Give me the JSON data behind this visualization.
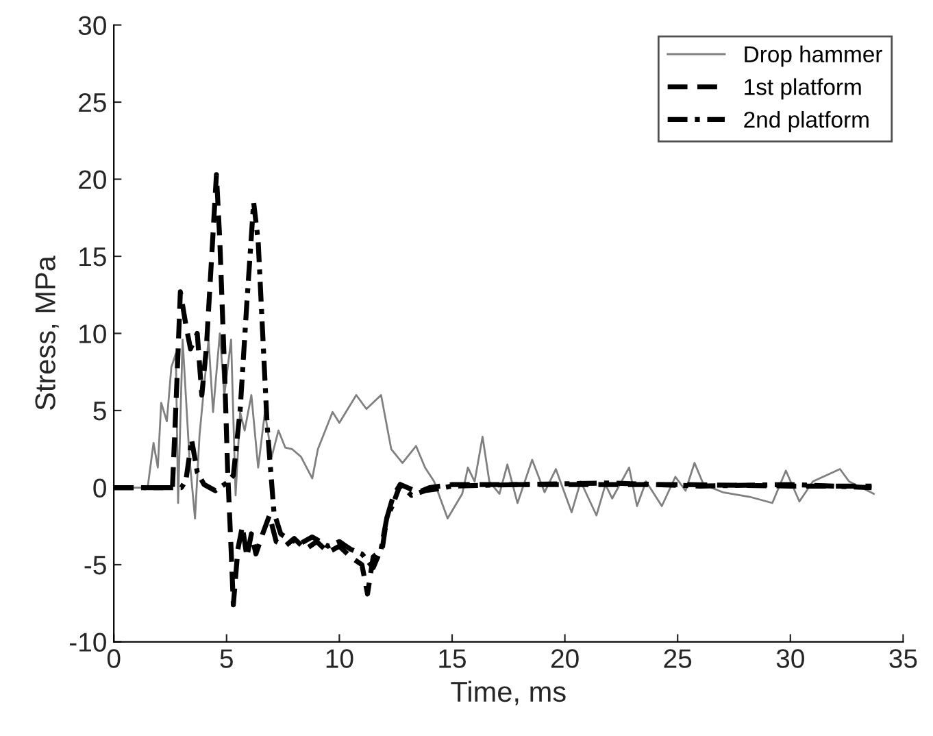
{
  "chart_data": {
    "type": "line",
    "xlabel": "Time, ms",
    "ylabel": "Stress, MPa",
    "xlim": [
      0,
      35
    ],
    "ylim": [
      -10,
      30
    ],
    "xticks": [
      0,
      5,
      10,
      15,
      20,
      25,
      30,
      35
    ],
    "yticks": [
      -10,
      -5,
      0,
      5,
      10,
      15,
      20,
      25,
      30
    ],
    "grid": false,
    "legend": "top right",
    "marker": "none",
    "series": [
      {
        "name": "Drop hammer",
        "color": "#808080",
        "line_style": "solid",
        "x": [
          0,
          1.5,
          1.76,
          1.95,
          2.1,
          2.35,
          2.55,
          2.75,
          2.85,
          3.05,
          3.35,
          3.6,
          3.8,
          4.2,
          4.4,
          4.7,
          4.9,
          5.2,
          5.4,
          5.6,
          5.8,
          6.1,
          6.4,
          6.7,
          7.0,
          7.3,
          7.6,
          7.9,
          8.3,
          8.8,
          9.05,
          9.7,
          10.0,
          10.75,
          11.2,
          11.85,
          12.3,
          12.8,
          13.4,
          13.8,
          14.2,
          14.8,
          15.45,
          15.7,
          16.0,
          16.35,
          16.65,
          17.1,
          17.45,
          17.9,
          18.55,
          19.1,
          19.6,
          20.3,
          20.7,
          21.4,
          21.8,
          22.1,
          22.85,
          23.2,
          23.6,
          24.3,
          24.9,
          25.35,
          25.75,
          26.15,
          27,
          28.2,
          29.2,
          29.8,
          30.4,
          31,
          32.2,
          32.6,
          33.7
        ],
        "values": [
          0,
          0,
          2.9,
          1.3,
          5.5,
          4.3,
          7.8,
          8.7,
          -1,
          9.6,
          2,
          -2,
          3.4,
          9.6,
          4.9,
          10,
          6,
          9.6,
          -0.5,
          4.9,
          3.7,
          6,
          1.3,
          4.9,
          2,
          3.7,
          2.6,
          2.5,
          2,
          0.6,
          2.5,
          4.9,
          4.2,
          6,
          5.1,
          6,
          2.5,
          1.6,
          2.7,
          1.3,
          0.4,
          -2,
          -0.4,
          1.3,
          0.4,
          3.3,
          0.4,
          -0.4,
          1.5,
          -1.0,
          1.8,
          -0.3,
          1.2,
          -1.6,
          0.4,
          -1.8,
          0.2,
          -0.7,
          1.3,
          -1.2,
          0.4,
          -1.2,
          0.7,
          -0.2,
          1.6,
          0.2,
          -0.3,
          -0.6,
          -1.0,
          1.1,
          -0.9,
          0.4,
          1.2,
          0.4,
          -0.4
        ]
      },
      {
        "name": "1st platform",
        "color": "#000000",
        "line_style": "dashed",
        "x": [
          0,
          2.6,
          2.8,
          2.95,
          3.2,
          3.4,
          3.7,
          3.9,
          4.1,
          4.3,
          4.55,
          4.7,
          4.9,
          5.05,
          5.2,
          5.3,
          5.5,
          5.7,
          5.9,
          6.1,
          6.3,
          6.6,
          6.9,
          7.2,
          7.6,
          8.0,
          8.5,
          9.0,
          9.5,
          10.0,
          10.5,
          11.0,
          11.25,
          11.5,
          11.9,
          12.1,
          12.4,
          12.7,
          13.5,
          14,
          15,
          20,
          25,
          30,
          33.6
        ],
        "values": [
          0,
          0,
          7,
          12.7,
          10.5,
          9,
          10,
          6,
          9,
          14,
          20.3,
          16,
          8,
          1,
          -4,
          -7.6,
          -4,
          -2.5,
          -4.5,
          -3,
          -4.3,
          -3,
          -1.8,
          -3.5,
          -3.8,
          -3.3,
          -4,
          -3.5,
          -4.2,
          -3.8,
          -4.5,
          -5,
          -6.9,
          -4.5,
          -4,
          -2,
          -0.5,
          0.2,
          -0.3,
          0,
          0.2,
          0.2,
          0.2,
          0.1,
          0.1
        ]
      },
      {
        "name": "2nd platform",
        "color": "#000000",
        "line_style": "dashdot",
        "x": [
          0,
          3.0,
          3.2,
          3.45,
          3.7,
          4.0,
          4.5,
          5.0,
          5.3,
          5.6,
          5.9,
          6.2,
          6.4,
          6.6,
          6.8,
          7.1,
          7.4,
          7.8,
          8.3,
          8.8,
          9.5,
          10,
          10.5,
          11,
          11.5,
          11.85,
          12.1,
          12.4,
          12.7,
          13.2,
          13.8,
          14.3,
          15,
          18,
          22,
          26,
          30,
          33.6
        ],
        "values": [
          0,
          0,
          0.5,
          3.1,
          1,
          0.2,
          -0.2,
          0.3,
          0.8,
          5,
          12,
          18.5,
          16,
          10,
          4,
          -1.6,
          -3,
          -3.4,
          -3.6,
          -3.2,
          -3.8,
          -3.5,
          -4,
          -4.3,
          -5.2,
          -4,
          -2,
          -1,
          0.2,
          -0.5,
          -0.2,
          -0.1,
          0.1,
          0.2,
          0.3,
          0.1,
          0.2,
          0
        ]
      }
    ]
  }
}
